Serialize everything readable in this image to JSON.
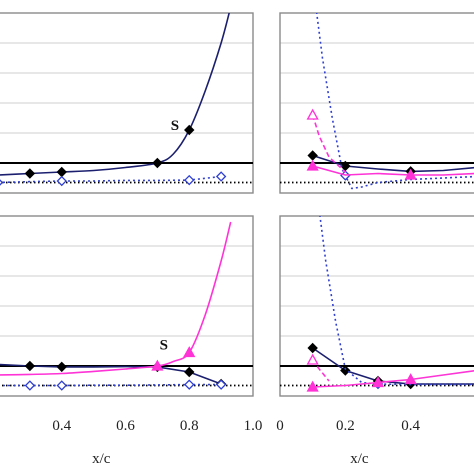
{
  "chart_data": [
    {
      "type": "line",
      "xlim": [
        0.2,
        1.0
      ],
      "ylim": [
        0,
        6
      ],
      "grid": "horizontal",
      "show_xticks": false,
      "xlabel": "",
      "xticks": [],
      "reference_lines": [
        {
          "y": 1.0,
          "style": "solid",
          "color": "#000000"
        },
        {
          "y": 0.35,
          "style": "dotted",
          "color": "#000000"
        }
      ],
      "annotation": {
        "text": "S",
        "x": 0.755,
        "y": 2.1
      },
      "series": [
        {
          "color": "#1b1f6e",
          "dash": "solid",
          "marker": "diamond-filled",
          "smooth": true,
          "x": [
            0.2,
            0.3,
            0.4,
            0.5,
            0.6,
            0.7,
            0.75,
            0.8,
            0.85,
            0.9,
            0.93
          ],
          "y": [
            0.6,
            0.65,
            0.7,
            0.75,
            0.85,
            1.0,
            1.3,
            2.1,
            3.4,
            5.0,
            6.2
          ],
          "marked_x": [
            0.3,
            0.4,
            0.7,
            0.8
          ]
        },
        {
          "color": "#2f3fd0",
          "dash": "dotted",
          "marker": "diamond-open",
          "x": [
            0.2,
            0.3,
            0.4,
            0.5,
            0.6,
            0.7,
            0.8,
            0.9
          ],
          "y": [
            0.35,
            0.38,
            0.4,
            0.4,
            0.42,
            0.42,
            0.43,
            0.55
          ],
          "marked_x": [
            0.2,
            0.4,
            0.8,
            0.9
          ]
        }
      ]
    },
    {
      "type": "line",
      "xlim": [
        0,
        0.6
      ],
      "ylim": [
        0,
        6
      ],
      "grid": "horizontal",
      "show_xticks": false,
      "xlabel": "",
      "xticks": [],
      "reference_lines": [
        {
          "y": 1.0,
          "style": "solid",
          "color": "#000000"
        },
        {
          "y": 0.35,
          "style": "dotted",
          "color": "#000000"
        }
      ],
      "series": [
        {
          "color": "#1b1f6e",
          "dash": "solid",
          "marker": "diamond-filled",
          "x": [
            0.1,
            0.2,
            0.3,
            0.4,
            0.5,
            0.6
          ],
          "y": [
            1.25,
            0.9,
            0.8,
            0.72,
            0.75,
            0.85
          ],
          "marked_x": [
            0.1,
            0.2,
            0.4
          ]
        },
        {
          "color": "#2f3fd0",
          "dash": "dotted",
          "marker": "diamond-open",
          "x": [
            0.11,
            0.13,
            0.16,
            0.19,
            0.22,
            0.25,
            0.3,
            0.4,
            0.5,
            0.6
          ],
          "y": [
            6.2,
            4.5,
            2.5,
            0.8,
            0.15,
            0.2,
            0.35,
            0.45,
            0.5,
            0.55
          ],
          "marked_x": [
            0.2
          ]
        },
        {
          "color": "#ff33d6",
          "dash": "dashed",
          "marker": "triangle-open",
          "x": [
            0.1,
            0.12,
            0.15,
            0.2
          ],
          "y": [
            2.6,
            1.9,
            1.2,
            0.7
          ],
          "marked_x": [
            0.1
          ]
        },
        {
          "color": "#ff33d6",
          "dash": "solid",
          "marker": "triangle-filled",
          "x": [
            0.1,
            0.2,
            0.3,
            0.4,
            0.5,
            0.6
          ],
          "y": [
            0.9,
            0.6,
            0.65,
            0.6,
            0.6,
            0.65
          ],
          "marked_x": [
            0.1,
            0.4
          ]
        }
      ]
    },
    {
      "type": "line",
      "xlim": [
        0.2,
        1.0
      ],
      "ylim": [
        0,
        6
      ],
      "grid": "horizontal",
      "show_xticks": true,
      "xlabel": "x/c",
      "xticks": [
        0.4,
        0.6,
        0.8,
        1.0
      ],
      "xtick_labels": [
        "0.4",
        "0.6",
        "0.8",
        "1.0"
      ],
      "reference_lines": [
        {
          "y": 1.0,
          "style": "solid",
          "color": "#000000"
        },
        {
          "y": 0.35,
          "style": "dotted",
          "color": "#000000"
        }
      ],
      "annotation": {
        "text": "S",
        "x": 0.72,
        "y": 1.55
      },
      "series": [
        {
          "color": "#1b1f6e",
          "dash": "solid",
          "marker": "diamond-filled",
          "x": [
            0.2,
            0.3,
            0.4,
            0.5,
            0.6,
            0.7,
            0.8,
            0.9
          ],
          "y": [
            1.05,
            1.0,
            0.97,
            0.97,
            0.98,
            0.97,
            0.8,
            0.4
          ],
          "marked_x": [
            0.3,
            0.4,
            0.7,
            0.8,
            0.9
          ]
        },
        {
          "color": "#ff33d6",
          "dash": "solid",
          "marker": "triangle-filled",
          "smooth": true,
          "x": [
            0.2,
            0.3,
            0.4,
            0.5,
            0.6,
            0.7,
            0.75,
            0.8,
            0.85,
            0.9,
            0.93
          ],
          "y": [
            0.7,
            0.72,
            0.75,
            0.82,
            0.9,
            1.0,
            1.15,
            1.45,
            2.7,
            4.5,
            5.8
          ],
          "marked_x": [
            0.7,
            0.8
          ]
        },
        {
          "color": "#2f3fd0",
          "dash": "dotted",
          "marker": "diamond-open",
          "x": [
            0.2,
            0.3,
            0.4,
            0.5,
            0.6,
            0.7,
            0.8,
            0.9
          ],
          "y": [
            0.35,
            0.35,
            0.35,
            0.36,
            0.36,
            0.37,
            0.38,
            0.38
          ],
          "marked_x": [
            0.3,
            0.4,
            0.8,
            0.9
          ]
        }
      ]
    },
    {
      "type": "line",
      "xlim": [
        0,
        0.6
      ],
      "ylim": [
        0,
        6
      ],
      "grid": "horizontal",
      "show_xticks": true,
      "xlabel": "x/c",
      "xticks": [
        0,
        0.2,
        0.4
      ],
      "xtick_labels": [
        "0",
        "0.2",
        "0.4"
      ],
      "reference_lines": [
        {
          "y": 1.0,
          "style": "solid",
          "color": "#000000"
        },
        {
          "y": 0.35,
          "style": "dotted",
          "color": "#000000"
        }
      ],
      "series": [
        {
          "color": "#1b1f6e",
          "dash": "solid",
          "marker": "diamond-filled",
          "x": [
            0.1,
            0.2,
            0.3,
            0.4,
            0.5,
            0.6
          ],
          "y": [
            1.6,
            0.85,
            0.5,
            0.4,
            0.4,
            0.4
          ],
          "marked_x": [
            0.1,
            0.2,
            0.3,
            0.4
          ]
        },
        {
          "color": "#2f3fd0",
          "dash": "dotted",
          "marker": "diamond-open",
          "x": [
            0.12,
            0.14,
            0.17,
            0.2,
            0.25,
            0.3,
            0.4,
            0.5,
            0.6
          ],
          "y": [
            6.2,
            4.5,
            2.5,
            0.9,
            0.45,
            0.4,
            0.38,
            0.38,
            0.38
          ],
          "marked_x": [
            0.3
          ]
        },
        {
          "color": "#ff33d6",
          "dash": "dashed",
          "marker": "triangle-open",
          "x": [
            0.1,
            0.12,
            0.15
          ],
          "y": [
            1.2,
            0.9,
            0.5
          ],
          "marked_x": [
            0.1
          ]
        },
        {
          "color": "#ff33d6",
          "dash": "solid",
          "marker": "triangle-filled",
          "x": [
            0.1,
            0.2,
            0.3,
            0.4,
            0.5,
            0.6
          ],
          "y": [
            0.3,
            0.35,
            0.45,
            0.55,
            0.7,
            0.85
          ],
          "marked_x": [
            0.1,
            0.3,
            0.4
          ]
        }
      ]
    }
  ]
}
